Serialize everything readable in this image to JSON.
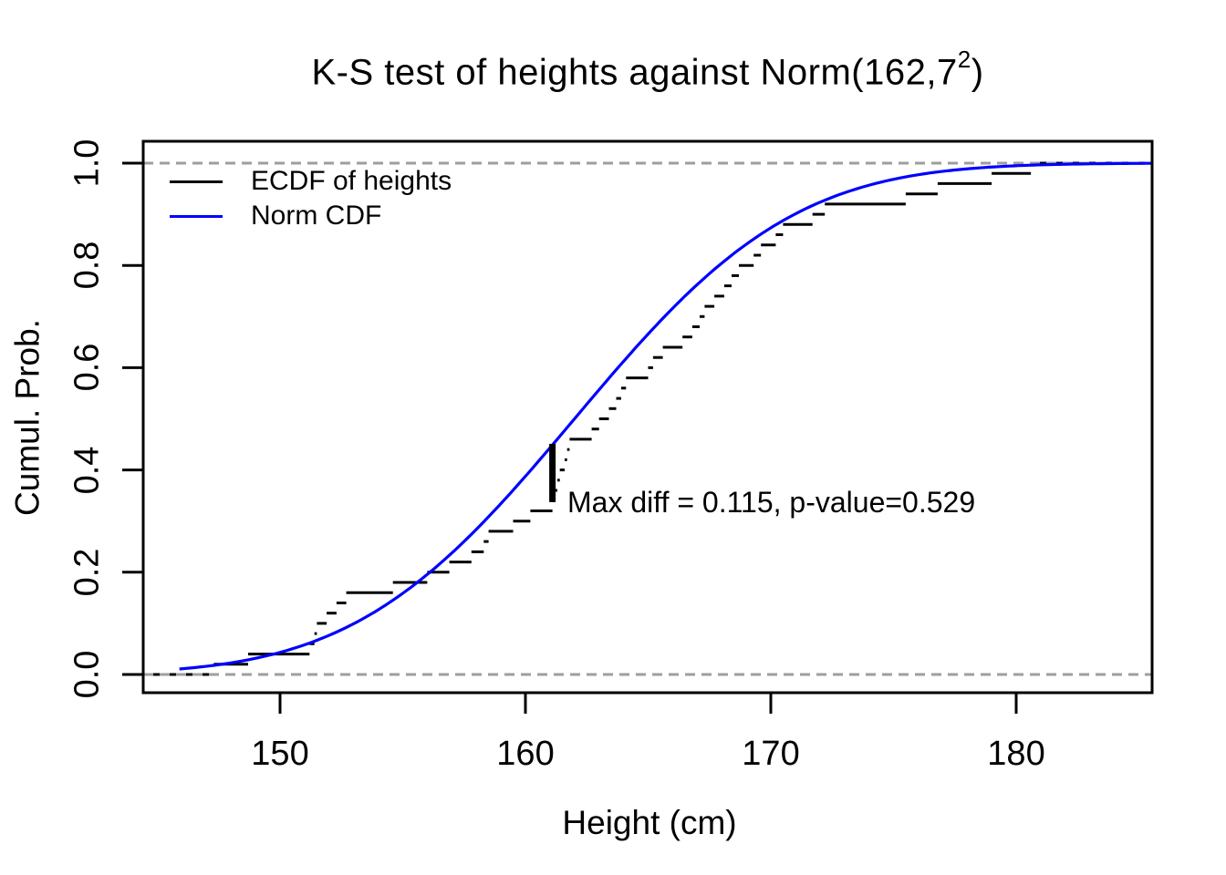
{
  "chart_data": {
    "type": "line",
    "title": "K-S test of heights against Norm(162,7²)",
    "title_parts": {
      "main": "K-S test of heights against Norm(162,7",
      "sup": "2",
      "end": ")"
    },
    "xlabel": "Height (cm)",
    "ylabel": "Cumul. Prob.",
    "xlim": [
      144.4,
      185.6
    ],
    "ylim": [
      -0.036,
      1.043
    ],
    "grid": false,
    "x_ticks": {
      "values": [
        150,
        160,
        170,
        180
      ],
      "labels": [
        "150",
        "160",
        "170",
        "180"
      ]
    },
    "y_ticks": {
      "values": [
        0,
        0.2,
        0.4,
        0.6,
        0.8,
        1.0
      ],
      "labels": [
        "0.0",
        "0.2",
        "0.4",
        "0.6",
        "0.8",
        "1.0"
      ]
    },
    "reference_lines": [
      {
        "y": 0,
        "style": "dashed",
        "color": "#9e9e9e"
      },
      {
        "y": 1,
        "style": "dashed",
        "color": "#9e9e9e"
      }
    ],
    "series": [
      {
        "name": "ECDF of heights",
        "type": "ecdf-step",
        "color": "#000000",
        "values": [
          147.3,
          148.7,
          151.2,
          151.4,
          151.5,
          151.9,
          152.3,
          152.7,
          154.6,
          156.0,
          156.9,
          157.8,
          158.3,
          158.5,
          159.5,
          160.2,
          161.1,
          161.2,
          161.3,
          161.4,
          161.6,
          161.7,
          161.8,
          162.7,
          163.0,
          163.4,
          163.7,
          163.9,
          164.1,
          165.0,
          165.2,
          165.6,
          166.4,
          166.8,
          167.1,
          167.3,
          167.7,
          168.1,
          168.4,
          168.7,
          169.3,
          169.6,
          170.2,
          170.5,
          171.7,
          172.2,
          175.5,
          176.8,
          179.0,
          180.6
        ]
      },
      {
        "name": "Norm CDF",
        "type": "normal-cdf",
        "color": "#0000ff",
        "mean": 162,
        "sd": 7,
        "x_range": [
          145.9,
          185.6
        ]
      }
    ],
    "legend": {
      "position": "topleft",
      "entries": [
        {
          "label": "ECDF of heights",
          "color": "#000000"
        },
        {
          "label": "Norm CDF",
          "color": "#0000ff"
        }
      ]
    },
    "ks_marker": {
      "x": 161.1,
      "ecdf_value": 0.337,
      "cdf_value": 0.451,
      "color": "#000000"
    },
    "annotation": {
      "text": "Max diff = 0.115, p-value=0.529",
      "x": 161.7,
      "y": 0.34
    },
    "max_diff": 0.115,
    "p_value": 0.529
  }
}
